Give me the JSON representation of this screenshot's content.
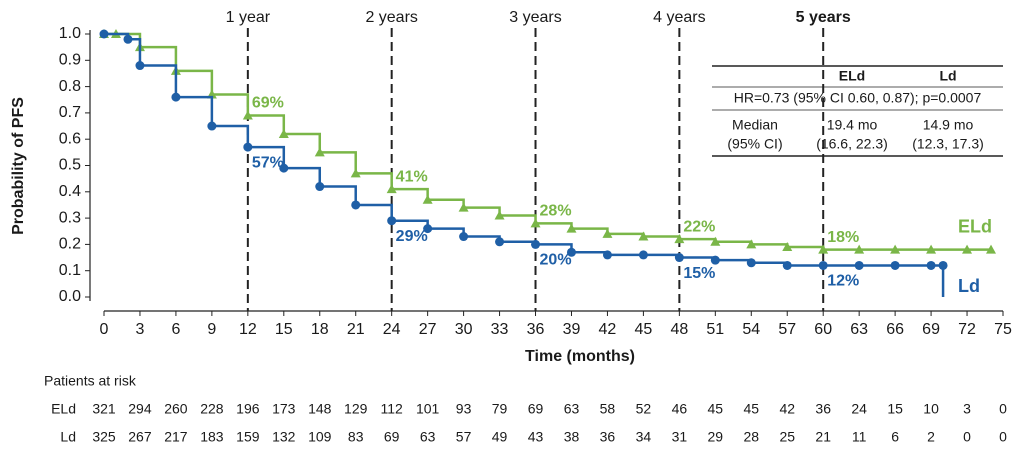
{
  "chart_data": {
    "type": "line",
    "x_label": "Time (months)",
    "y_label": "Probability of PFS",
    "xlim": [
      0,
      75
    ],
    "ylim": [
      0,
      1.0
    ],
    "xticks": [
      0,
      3,
      6,
      9,
      12,
      15,
      18,
      21,
      24,
      27,
      30,
      33,
      36,
      39,
      42,
      45,
      48,
      51,
      54,
      57,
      60,
      63,
      66,
      69,
      72,
      75
    ],
    "yticks": [
      {
        "value": 0,
        "label": "0.0"
      },
      {
        "value": 0.1,
        "label": "0.1"
      },
      {
        "value": 0.2,
        "label": "0.2"
      },
      {
        "value": 0.3,
        "label": "0.3"
      },
      {
        "value": 0.4,
        "label": "0.4"
      },
      {
        "value": 0.5,
        "label": "0.5"
      },
      {
        "value": 0.6,
        "label": "0.6"
      },
      {
        "value": 0.7,
        "label": "0.7"
      },
      {
        "value": 0.8,
        "label": "0.8"
      },
      {
        "value": 0.9,
        "label": "0.9"
      },
      {
        "value": 1.0,
        "label": "1.0"
      }
    ],
    "series": [
      {
        "name": "ELd",
        "color": "#7ab648",
        "marker": "triangle",
        "x": [
          0,
          1,
          3,
          6,
          9,
          12,
          15,
          18,
          21,
          24,
          27,
          30,
          33,
          36,
          39,
          42,
          45,
          48,
          51,
          54,
          57,
          60,
          63,
          66,
          69,
          72,
          74
        ],
        "values": [
          1.0,
          1.0,
          0.95,
          0.86,
          0.77,
          0.69,
          0.62,
          0.55,
          0.47,
          0.41,
          0.37,
          0.34,
          0.31,
          0.28,
          0.26,
          0.24,
          0.23,
          0.22,
          0.21,
          0.2,
          0.19,
          0.18,
          0.18,
          0.18,
          0.18,
          0.18,
          0.18
        ]
      },
      {
        "name": "Ld",
        "color": "#1f5fa6",
        "marker": "circle",
        "x": [
          0,
          2,
          3,
          6,
          9,
          12,
          15,
          18,
          21,
          24,
          27,
          30,
          33,
          36,
          39,
          42,
          45,
          48,
          51,
          54,
          57,
          60,
          63,
          66,
          69,
          70,
          70
        ],
        "values": [
          1.0,
          0.98,
          0.88,
          0.76,
          0.65,
          0.57,
          0.49,
          0.42,
          0.35,
          0.29,
          0.26,
          0.23,
          0.21,
          0.2,
          0.17,
          0.16,
          0.16,
          0.15,
          0.14,
          0.13,
          0.12,
          0.12,
          0.12,
          0.12,
          0.12,
          0.12,
          0.0
        ]
      }
    ],
    "milestones": [
      {
        "x": 12,
        "label": "1 year",
        "eld": {
          "value": 0.69,
          "label": "69%"
        },
        "ld": {
          "value": 0.57,
          "label": "57%"
        }
      },
      {
        "x": 24,
        "label": "2 years",
        "eld": {
          "value": 0.41,
          "label": "41%"
        },
        "ld": {
          "value": 0.29,
          "label": "29%"
        }
      },
      {
        "x": 36,
        "label": "3 years",
        "eld": {
          "value": 0.28,
          "label": "28%"
        },
        "ld": {
          "value": 0.2,
          "label": "20%"
        }
      },
      {
        "x": 48,
        "label": "4 years",
        "eld": {
          "value": 0.22,
          "label": "22%"
        },
        "ld": {
          "value": 0.15,
          "label": "15%"
        }
      },
      {
        "x": 60,
        "label": "5 years",
        "eld": {
          "value": 0.18,
          "label": "18%"
        },
        "ld": {
          "value": 0.12,
          "label": "12%"
        }
      }
    ],
    "table": {
      "header": [
        "ELd",
        "Ld"
      ],
      "hr": "HR=0.73 (95% CI 0.60, 0.87); p=0.0007",
      "rows": [
        [
          "Median",
          "19.4 mo",
          "14.9 mo"
        ],
        [
          "(95% CI)",
          "(16.6, 22.3)",
          "(12.3, 17.3)"
        ]
      ]
    },
    "at_risk": {
      "title": "Patients at risk",
      "rows": [
        {
          "name": "ELd",
          "values": [
            321,
            294,
            260,
            228,
            196,
            173,
            148,
            129,
            112,
            101,
            93,
            79,
            69,
            63,
            58,
            52,
            46,
            45,
            45,
            42,
            36,
            24,
            15,
            10,
            3,
            0
          ]
        },
        {
          "name": "Ld",
          "values": [
            325,
            267,
            217,
            183,
            159,
            132,
            109,
            83,
            69,
            63,
            57,
            49,
            43,
            38,
            36,
            34,
            31,
            29,
            28,
            25,
            21,
            11,
            6,
            2,
            0,
            0
          ]
        }
      ]
    }
  }
}
